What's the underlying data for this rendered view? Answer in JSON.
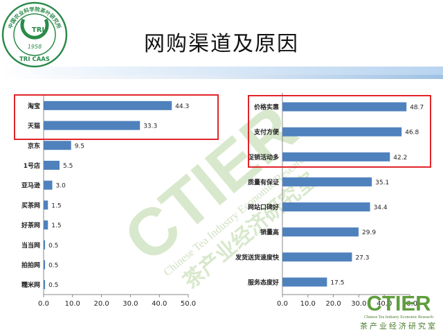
{
  "title": "网购渠道及原因",
  "logo": {
    "org_name": "中国农业科学院茶叶研究所",
    "abbr": "TRI",
    "year": "1958",
    "caption": "TRI CAAS"
  },
  "watermark": {
    "brand": "CTIER",
    "english": "Chinese Tea Industry Economic Research",
    "chinese": "茶产业经济研究室"
  },
  "colors": {
    "bar": "#4f81bd",
    "highlight": "#e0242a",
    "brand_green": "#6aa84f",
    "logo_green": "#2a8a4a"
  },
  "chart_data": [
    {
      "type": "bar",
      "orientation": "horizontal",
      "categories": [
        "淘宝",
        "天猫",
        "京东",
        "1号店",
        "亚马逊",
        "买茶网",
        "好茶网",
        "当当网",
        "拍拍网",
        "糯米网"
      ],
      "values": [
        44.3,
        33.3,
        9.5,
        5.5,
        3.0,
        1.5,
        1.5,
        0.5,
        0.5,
        0.5
      ],
      "data_labels": [
        "44.3",
        "33.3",
        "9.5",
        "5.5",
        "3.0",
        "1.5",
        "1.5",
        "0.5",
        "0.5",
        "0.5"
      ],
      "xlim": [
        0,
        50
      ],
      "xticks": [
        "0.0",
        "10.0",
        "20.0",
        "30.0",
        "40.0",
        "50.0"
      ],
      "highlighted": [
        "淘宝",
        "天猫"
      ],
      "grid": false,
      "legend": "none"
    },
    {
      "type": "bar",
      "orientation": "horizontal",
      "categories": [
        "价格实惠",
        "支付方便",
        "促销活动多",
        "质量有保证",
        "网站口碑好",
        "销量高",
        "发货送货速度快",
        "服务态度好"
      ],
      "values": [
        48.7,
        46.8,
        42.2,
        35.1,
        34.4,
        29.9,
        27.3,
        17.5
      ],
      "data_labels": [
        "48.7",
        "46.8",
        "42.2",
        "35.1",
        "34.4",
        "29.9",
        "27.3",
        "17.5"
      ],
      "xlim": [
        0,
        50
      ],
      "xticks": [
        "0.0",
        "10.0",
        "20.0",
        "30.0",
        "40.0",
        "50.0"
      ],
      "highlighted": [
        "价格实惠",
        "支付方便",
        "促销活动多"
      ],
      "grid": false,
      "legend": "none"
    }
  ]
}
